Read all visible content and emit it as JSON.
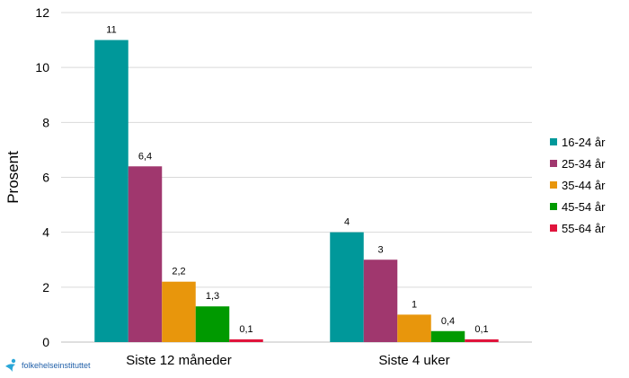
{
  "chart_data": {
    "type": "bar",
    "title": "",
    "xlabel": "",
    "ylabel": "Prosent",
    "ylim": [
      0,
      12
    ],
    "yticks": [
      0,
      2,
      4,
      6,
      8,
      10,
      12
    ],
    "grid": true,
    "legend_position": "right",
    "categories": [
      "Siste 12 måneder",
      "Siste 4 uker"
    ],
    "series": [
      {
        "name": "16-24 år",
        "color": "#00989a",
        "values": [
          11,
          4
        ],
        "labels": [
          "11",
          "4"
        ]
      },
      {
        "name": "25-34 år",
        "color": "#a0376e",
        "values": [
          6.4,
          3
        ],
        "labels": [
          "6,4",
          "3"
        ]
      },
      {
        "name": "35-44 år",
        "color": "#e8960c",
        "values": [
          2.2,
          1
        ],
        "labels": [
          "2,2",
          "1"
        ]
      },
      {
        "name": "45-54 år",
        "color": "#009a00",
        "values": [
          1.3,
          0.4
        ],
        "labels": [
          "1,3",
          "0,4"
        ]
      },
      {
        "name": "55-64 år",
        "color": "#e0143c",
        "values": [
          0.1,
          0.1
        ],
        "labels": [
          "0,1",
          "0,1"
        ]
      }
    ]
  },
  "logo": {
    "text": "folkehelseinstituttet"
  }
}
